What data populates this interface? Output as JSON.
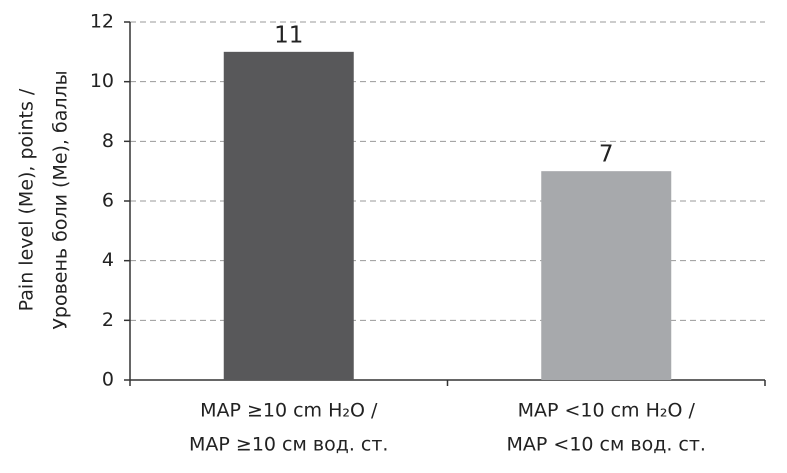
{
  "chart_data": {
    "type": "bar",
    "y_label": [
      "Pain level (Me), points /",
      "Уровень боли (Me), баллы"
    ],
    "categories": [
      [
        "MAP ≥10 cm H₂O /",
        "MAP ≥10 см вод. ст."
      ],
      [
        "MAP <10 cm H₂O /",
        "MAP <10 см вод. ст."
      ]
    ],
    "values": [
      11,
      7
    ],
    "colors": [
      "#58585a",
      "#a7a9ac"
    ],
    "ylim": [
      0,
      12
    ],
    "yticks": [
      0,
      2,
      4,
      6,
      8,
      10,
      12
    ],
    "grid": true
  }
}
